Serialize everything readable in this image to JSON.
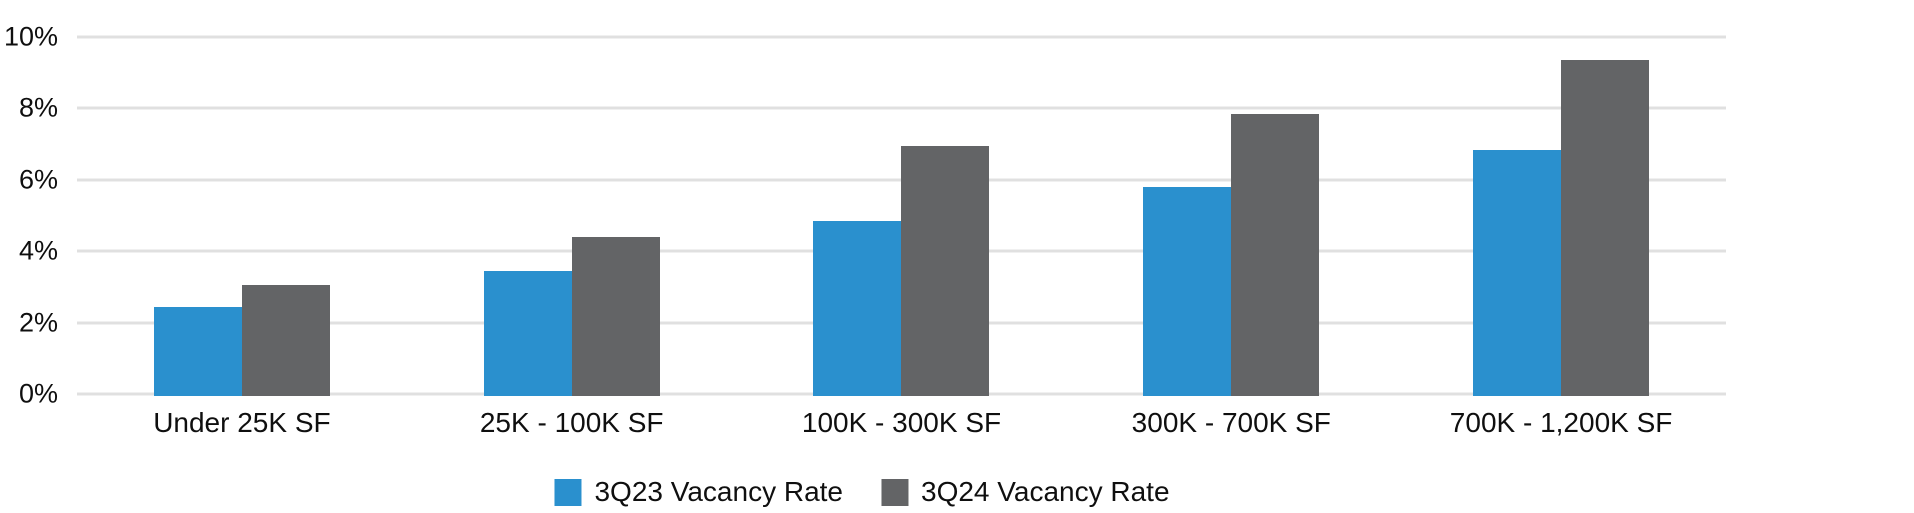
{
  "chart_data": {
    "type": "bar",
    "title": "",
    "xlabel": "",
    "ylabel": "",
    "categories": [
      "Under 25K SF",
      "25K - 100K SF",
      "100K - 300K SF",
      "300K - 700K SF",
      "700K - 1,200K SF"
    ],
    "series": [
      {
        "name": "3Q23 Vacancy Rate",
        "color": "#2a90ce",
        "values": [
          2.5,
          3.5,
          4.9,
          5.85,
          6.9
        ]
      },
      {
        "name": "3Q24 Vacancy Rate",
        "color": "#636466",
        "values": [
          3.1,
          4.45,
          7.0,
          7.9,
          9.4
        ]
      }
    ],
    "ylim": [
      0,
      10
    ],
    "y_ticks": [
      {
        "value": 10,
        "label": "10%"
      },
      {
        "value": 8,
        "label": "8%"
      },
      {
        "value": 6,
        "label": "6%"
      },
      {
        "value": 4,
        "label": "4%"
      },
      {
        "value": 2,
        "label": "2%"
      },
      {
        "value": 0,
        "label": "0%"
      }
    ],
    "grid": "horizontal",
    "gridline_color": "#e0e0e0",
    "background_color": "#ffffff",
    "text_color": "#0f0f0f",
    "legend_position": "bottom"
  }
}
